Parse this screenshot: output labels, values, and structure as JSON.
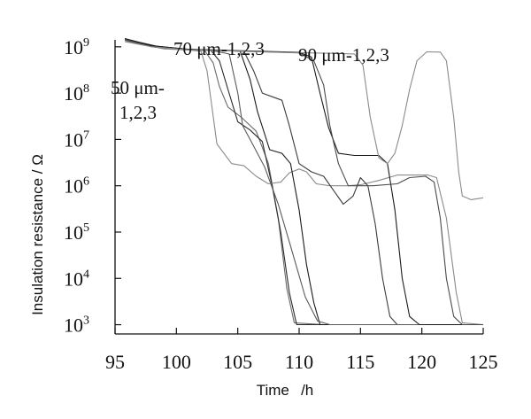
{
  "chart_data": {
    "type": "line",
    "xlabel": "Time  /h",
    "ylabel": "Insulation resistance / Ω",
    "xlim": [
      95,
      125
    ],
    "ylim_log10": [
      2.8,
      9.15
    ],
    "y_scale": "log",
    "x_ticks": [
      "95",
      "100",
      "105",
      "110",
      "115",
      "120",
      "125"
    ],
    "y_ticks": [
      {
        "base": "10",
        "exp": "9",
        "value": 1000000000
      },
      {
        "base": "10",
        "exp": "8",
        "value": 100000000
      },
      {
        "base": "10",
        "exp": "7",
        "value": 10000000
      },
      {
        "base": "10",
        "exp": "6",
        "value": 1000000
      },
      {
        "base": "10",
        "exp": "5",
        "value": 100000
      },
      {
        "base": "10",
        "exp": "4",
        "value": 10000
      },
      {
        "base": "10",
        "exp": "3",
        "value": 1000
      }
    ],
    "annotations": [
      {
        "id": "a70",
        "text": "70 μm-1,2,3"
      },
      {
        "id": "a90",
        "text": "90 μm-1,2,3"
      },
      {
        "id": "a50a",
        "text": "50 μm-"
      },
      {
        "id": "a50b",
        "text": "1,2,3"
      }
    ],
    "series": [
      {
        "color": "#6a6a6a",
        "points": [
          [
            95.8,
            1300000000.0
          ],
          [
            97,
            1200000000.0
          ],
          [
            99,
            920000000.0
          ],
          [
            101,
            860000000.0
          ],
          [
            102.3,
            830000000.0
          ],
          [
            103,
            450000000.0
          ],
          [
            103.5,
            140000000.0
          ],
          [
            104.2,
            50000000.0
          ],
          [
            105.3,
            30000000.0
          ],
          [
            106.5,
            15000000.0
          ],
          [
            107.5,
            3000000.0
          ],
          [
            108.3,
            200000.0
          ],
          [
            109,
            6000.0
          ],
          [
            109.6,
            1100.0
          ],
          [
            112,
            1000.0
          ],
          [
            125,
            1000.0
          ]
        ]
      },
      {
        "color": "#2a2a2a",
        "points": [
          [
            95.8,
            1500000000.0
          ],
          [
            97,
            1250000000.0
          ],
          [
            99,
            950000000.0
          ],
          [
            101,
            880000000.0
          ],
          [
            102.8,
            840000000.0
          ],
          [
            103.5,
            500000000.0
          ],
          [
            104.2,
            120000000.0
          ],
          [
            105,
            24000000.0
          ],
          [
            106,
            16000000.0
          ],
          [
            107,
            9000000.0
          ],
          [
            107.8,
            1000000.0
          ],
          [
            108.5,
            100000.0
          ],
          [
            109.2,
            5000.0
          ],
          [
            109.8,
            1000.0
          ],
          [
            125,
            1000.0
          ]
        ]
      },
      {
        "color": "#8a8a8a",
        "points": [
          [
            95.8,
            1400000000.0
          ],
          [
            97,
            1150000000.0
          ],
          [
            99,
            900000000.0
          ],
          [
            101,
            850000000.0
          ],
          [
            102,
            800000000.0
          ],
          [
            102.5,
            300000000.0
          ],
          [
            103.3,
            8000000.0
          ],
          [
            104.5,
            3000000.0
          ],
          [
            105.5,
            2700000.0
          ],
          [
            106.5,
            1600000.0
          ],
          [
            107.5,
            1100000.0
          ],
          [
            108.5,
            1200000.0
          ],
          [
            109.2,
            1900000.0
          ],
          [
            110,
            2300000.0
          ],
          [
            110.6,
            2000000.0
          ],
          [
            111.4,
            1100000.0
          ],
          [
            112.5,
            1000000.0
          ],
          [
            114,
            1000000.0
          ],
          [
            115,
            1050000.0
          ],
          [
            116.5,
            1300000.0
          ],
          [
            118,
            1700000.0
          ],
          [
            120.5,
            1700000.0
          ],
          [
            121.2,
            1500000.0
          ],
          [
            122,
            200000.0
          ],
          [
            122.8,
            5000.0
          ],
          [
            123.3,
            1100.0
          ],
          [
            125,
            1000.0
          ]
        ]
      },
      {
        "color": "#1a1a1a",
        "points": [
          [
            95.8,
            1500000000.0
          ],
          [
            98,
            1050000000.0
          ],
          [
            101,
            880000000.0
          ],
          [
            104,
            840000000.0
          ],
          [
            105.2,
            800000000.0
          ],
          [
            106,
            200000000.0
          ],
          [
            106.6,
            40000000.0
          ],
          [
            107.6,
            6000000.0
          ],
          [
            108.6,
            5000000.0
          ],
          [
            109.3,
            3000000.0
          ],
          [
            110,
            300000.0
          ],
          [
            110.6,
            20000.0
          ],
          [
            111.2,
            3000.0
          ],
          [
            111.7,
            1000.0
          ],
          [
            125,
            1000.0
          ]
        ]
      },
      {
        "color": "#3a3a3a",
        "points": [
          [
            95.8,
            1450000000.0
          ],
          [
            98,
            1050000000.0
          ],
          [
            101,
            870000000.0
          ],
          [
            104,
            830000000.0
          ],
          [
            105.5,
            800000000.0
          ],
          [
            106.3,
            300000000.0
          ],
          [
            107,
            100000000.0
          ],
          [
            108,
            80000000.0
          ],
          [
            108.6,
            70000000.0
          ],
          [
            109.2,
            20000000.0
          ],
          [
            110,
            3000000.0
          ],
          [
            111,
            2000000.0
          ],
          [
            112,
            1600000.0
          ],
          [
            112.8,
            800000.0
          ],
          [
            113.6,
            400000.0
          ],
          [
            114.4,
            600000.0
          ],
          [
            115,
            1500000.0
          ],
          [
            115.6,
            1000000.0
          ],
          [
            116.2,
            150000.0
          ],
          [
            116.8,
            10000.0
          ],
          [
            117.4,
            1500.0
          ],
          [
            118,
            1000.0
          ],
          [
            125,
            1000.0
          ]
        ]
      },
      {
        "color": "#5a5a5a",
        "points": [
          [
            95.8,
            1400000000.0
          ],
          [
            98,
            1000000000.0
          ],
          [
            101,
            860000000.0
          ],
          [
            103,
            820000000.0
          ],
          [
            104.3,
            700000000.0
          ],
          [
            105,
            100000000.0
          ],
          [
            105.4,
            20000000.0
          ],
          [
            106.2,
            8000000.0
          ],
          [
            107.2,
            2500000.0
          ],
          [
            108.3,
            400000.0
          ],
          [
            109.3,
            50000.0
          ],
          [
            110.5,
            4000.0
          ],
          [
            111.5,
            1200.0
          ],
          [
            112.5,
            1000.0
          ],
          [
            125,
            1000.0
          ]
        ]
      },
      {
        "color": "#1a1a1a",
        "points": [
          [
            95.8,
            1500000000.0
          ],
          [
            98,
            1050000000.0
          ],
          [
            101,
            880000000.0
          ],
          [
            104,
            840000000.0
          ],
          [
            107,
            800000000.0
          ],
          [
            110,
            760000000.0
          ],
          [
            111,
            600000000.0
          ],
          [
            111.7,
            100000000.0
          ],
          [
            112.4,
            18000000.0
          ],
          [
            113.2,
            5000000.0
          ],
          [
            114.5,
            4500000.0
          ],
          [
            116.5,
            4500000.0
          ],
          [
            117.2,
            3000000.0
          ],
          [
            117.8,
            300000.0
          ],
          [
            118.4,
            10000.0
          ],
          [
            119,
            1500.0
          ],
          [
            119.8,
            1000.0
          ],
          [
            125,
            1000.0
          ]
        ]
      },
      {
        "color": "#4a4a4a",
        "points": [
          [
            95.8,
            1450000000.0
          ],
          [
            98,
            1000000000.0
          ],
          [
            101,
            870000000.0
          ],
          [
            104,
            830000000.0
          ],
          [
            107,
            780000000.0
          ],
          [
            110,
            740000000.0
          ],
          [
            111.2,
            500000000.0
          ],
          [
            112,
            150000000.0
          ],
          [
            112.5,
            20000000.0
          ],
          [
            113.2,
            3000000.0
          ],
          [
            114,
            1000000.0
          ],
          [
            116,
            1000000.0
          ],
          [
            118,
            1100000.0
          ],
          [
            119,
            1500000.0
          ],
          [
            120.3,
            1600000.0
          ],
          [
            121,
            1200000.0
          ],
          [
            121.5,
            200000.0
          ],
          [
            122,
            10000.0
          ],
          [
            122.6,
            1500.0
          ],
          [
            123.3,
            1000.0
          ],
          [
            125,
            1000.0
          ]
        ]
      },
      {
        "color": "#8a8a8a",
        "points": [
          [
            95.8,
            1300000000.0
          ],
          [
            98,
            1000000000.0
          ],
          [
            101,
            860000000.0
          ],
          [
            104,
            820000000.0
          ],
          [
            107,
            780000000.0
          ],
          [
            110,
            750000000.0
          ],
          [
            113,
            720000000.0
          ],
          [
            114.5,
            700000000.0
          ],
          [
            115.2,
            400000000.0
          ],
          [
            115.8,
            30000000.0
          ],
          [
            116.5,
            4000000.0
          ],
          [
            117.2,
            3000000.0
          ],
          [
            117.8,
            5000000.0
          ],
          [
            118.4,
            20000000.0
          ],
          [
            119,
            120000000.0
          ],
          [
            119.6,
            500000000.0
          ],
          [
            120.4,
            780000000.0
          ],
          [
            121.5,
            770000000.0
          ],
          [
            122,
            500000000.0
          ],
          [
            122.6,
            30000000.0
          ],
          [
            123,
            2000000.0
          ],
          [
            123.3,
            600000.0
          ],
          [
            124,
            500000.0
          ],
          [
            125,
            550000.0
          ]
        ]
      }
    ]
  }
}
